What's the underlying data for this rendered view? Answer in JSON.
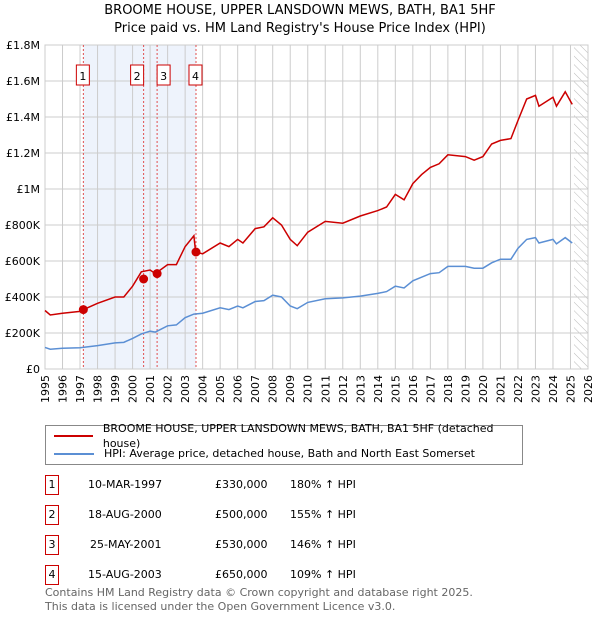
{
  "chart_data": {
    "type": "line",
    "title": "BROOME HOUSE, UPPER LANSDOWN MEWS, BATH, BA1 5HF",
    "subtitle": "Price paid vs. HM Land Registry's House Price Index (HPI)",
    "xlim": [
      1995,
      2026
    ],
    "ylim": [
      0,
      1800000
    ],
    "x_ticks": [
      "1995",
      "1996",
      "1997",
      "1998",
      "1999",
      "2000",
      "2001",
      "2002",
      "2003",
      "2004",
      "2005",
      "2006",
      "2007",
      "2008",
      "2009",
      "2010",
      "2011",
      "2012",
      "2013",
      "2014",
      "2015",
      "2016",
      "2017",
      "2018",
      "2019",
      "2020",
      "2021",
      "2022",
      "2023",
      "2024",
      "2025",
      "2026"
    ],
    "y_ticks": [
      {
        "v": 0,
        "l": "£0"
      },
      {
        "v": 200000,
        "l": "£200K"
      },
      {
        "v": 400000,
        "l": "£400K"
      },
      {
        "v": 600000,
        "l": "£600K"
      },
      {
        "v": 800000,
        "l": "£800K"
      },
      {
        "v": 1000000,
        "l": "£1M"
      },
      {
        "v": 1200000,
        "l": "£1.2M"
      },
      {
        "v": 1400000,
        "l": "£1.4M"
      },
      {
        "v": 1600000,
        "l": "£1.6M"
      },
      {
        "v": 1800000,
        "l": "£1.8M"
      }
    ],
    "series": [
      {
        "name": "BROOME HOUSE, UPPER LANSDOWN MEWS, BATH, BA1 5HF (detached house)",
        "color": "#cc0000",
        "x": [
          1995,
          1995.3,
          1996,
          1997,
          1997.2,
          1998,
          1999,
          1999.5,
          2000,
          2000.5,
          2001,
          2001.3,
          2002,
          2002.5,
          2003,
          2003.5,
          2003.6,
          2004,
          2005,
          2005.5,
          2006,
          2006.3,
          2007,
          2007.5,
          2008,
          2008.5,
          2009,
          2009.4,
          2010,
          2011,
          2012,
          2013,
          2014,
          2014.5,
          2015,
          2015.5,
          2016,
          2016.5,
          2017,
          2017.5,
          2018,
          2019,
          2019.5,
          2020,
          2020.5,
          2021,
          2021.6,
          2022,
          2022.5,
          2023,
          2023.2,
          2024,
          2024.2,
          2024.7,
          2025.1
        ],
        "values": [
          325000,
          300000,
          310000,
          320000,
          330000,
          365000,
          400000,
          400000,
          460000,
          540000,
          550000,
          530000,
          580000,
          580000,
          680000,
          740000,
          650000,
          640000,
          700000,
          680000,
          720000,
          700000,
          780000,
          790000,
          840000,
          800000,
          720000,
          685000,
          760000,
          820000,
          810000,
          850000,
          880000,
          900000,
          970000,
          940000,
          1030000,
          1080000,
          1120000,
          1140000,
          1190000,
          1180000,
          1160000,
          1180000,
          1250000,
          1270000,
          1280000,
          1380000,
          1500000,
          1520000,
          1460000,
          1510000,
          1460000,
          1540000,
          1470000
        ]
      },
      {
        "name": "HPI: Average price, detached house, Bath and North East Somerset",
        "color": "#5b8fd4",
        "x": [
          1995,
          1995.3,
          1996,
          1997,
          1998,
          1999,
          1999.5,
          2000,
          2000.5,
          2001,
          2001.3,
          2002,
          2002.5,
          2003,
          2003.5,
          2004,
          2005,
          2005.5,
          2006,
          2006.3,
          2007,
          2007.5,
          2008,
          2008.5,
          2009,
          2009.4,
          2010,
          2011,
          2012,
          2013,
          2014,
          2014.5,
          2015,
          2015.5,
          2016,
          2016.5,
          2017,
          2017.5,
          2018,
          2019,
          2019.5,
          2020,
          2020.5,
          2021,
          2021.6,
          2022,
          2022.5,
          2023,
          2023.2,
          2024,
          2024.2,
          2024.7,
          2025.1
        ],
        "values": [
          120000,
          110000,
          115000,
          118000,
          130000,
          145000,
          148000,
          170000,
          195000,
          210000,
          205000,
          240000,
          245000,
          285000,
          305000,
          310000,
          340000,
          330000,
          350000,
          340000,
          375000,
          380000,
          410000,
          400000,
          350000,
          335000,
          370000,
          390000,
          395000,
          405000,
          420000,
          430000,
          460000,
          450000,
          490000,
          510000,
          530000,
          535000,
          570000,
          570000,
          560000,
          560000,
          590000,
          610000,
          610000,
          670000,
          720000,
          730000,
          700000,
          720000,
          695000,
          730000,
          700000
        ]
      }
    ],
    "sales": [
      {
        "n": "1",
        "x": 1997.19,
        "v": 330000
      },
      {
        "n": "2",
        "x": 2000.63,
        "v": 500000
      },
      {
        "n": "3",
        "x": 2001.4,
        "v": 530000
      },
      {
        "n": "4",
        "x": 2003.62,
        "v": 650000
      }
    ],
    "shaded_range": [
      1997.19,
      2003.62
    ],
    "forecast_from": 2025.2
  },
  "legend": [
    "BROOME HOUSE, UPPER LANSDOWN MEWS, BATH, BA1 5HF (detached house)",
    "HPI: Average price, detached house, Bath and North East Somerset"
  ],
  "table": [
    {
      "n": "1",
      "date": "10-MAR-1997",
      "price": "£330,000",
      "hpi": "180% ↑ HPI"
    },
    {
      "n": "2",
      "date": "18-AUG-2000",
      "price": "£500,000",
      "hpi": "155% ↑ HPI"
    },
    {
      "n": "3",
      "date": "25-MAY-2001",
      "price": "£530,000",
      "hpi": "146% ↑ HPI"
    },
    {
      "n": "4",
      "date": "15-AUG-2003",
      "price": "£650,000",
      "hpi": "109% ↑ HPI"
    }
  ],
  "footer": [
    "Contains HM Land Registry data © Crown copyright and database right 2025.",
    "This data is licensed under the Open Government Licence v3.0."
  ]
}
